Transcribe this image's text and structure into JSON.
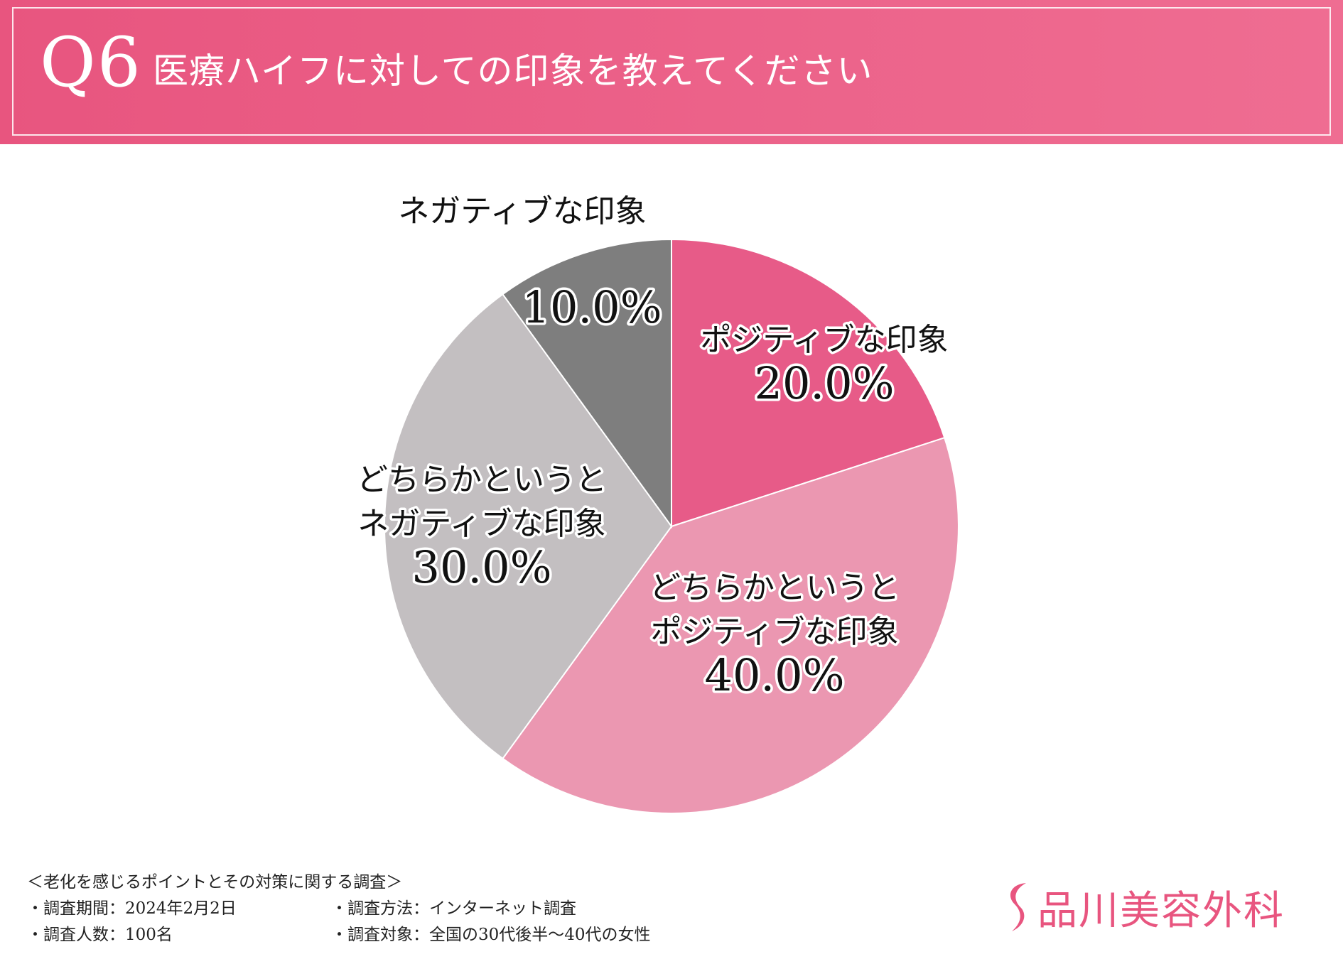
{
  "header": {
    "question_number": "Q6",
    "question_text": "医療ハイフに対しての印象を教えてください"
  },
  "chart_data": {
    "type": "pie",
    "title": "",
    "slices": [
      {
        "label_lines": [
          "ポジティブな印象"
        ],
        "value": 20.0,
        "value_label": "20.0%",
        "color": "#e75b88"
      },
      {
        "label_lines": [
          "どちらかというと",
          "ポジティブな印象"
        ],
        "value": 40.0,
        "value_label": "40.0%",
        "color": "#eb97b1"
      },
      {
        "label_lines": [
          "どちらかというと",
          "ネガティブな印象"
        ],
        "value": 30.0,
        "value_label": "30.0%",
        "color": "#c3bfc1"
      },
      {
        "label_lines": [
          "ネガティブな印象"
        ],
        "value": 10.0,
        "value_label": "10.0%",
        "color": "#7e7e7e"
      }
    ]
  },
  "footer": {
    "survey_title": "＜老化を感じるポイントとその対策に関する調査＞",
    "period": "・調査期間：2024年2月2日",
    "method": "・調査方法：インターネット調査",
    "count": "・調査人数：100名",
    "target": "・調査対象：全国の30代後半〜40代の女性"
  },
  "brand": {
    "name": "品川美容外科",
    "logo_icon": "s-swoosh-logo",
    "color": "#e8557f"
  }
}
